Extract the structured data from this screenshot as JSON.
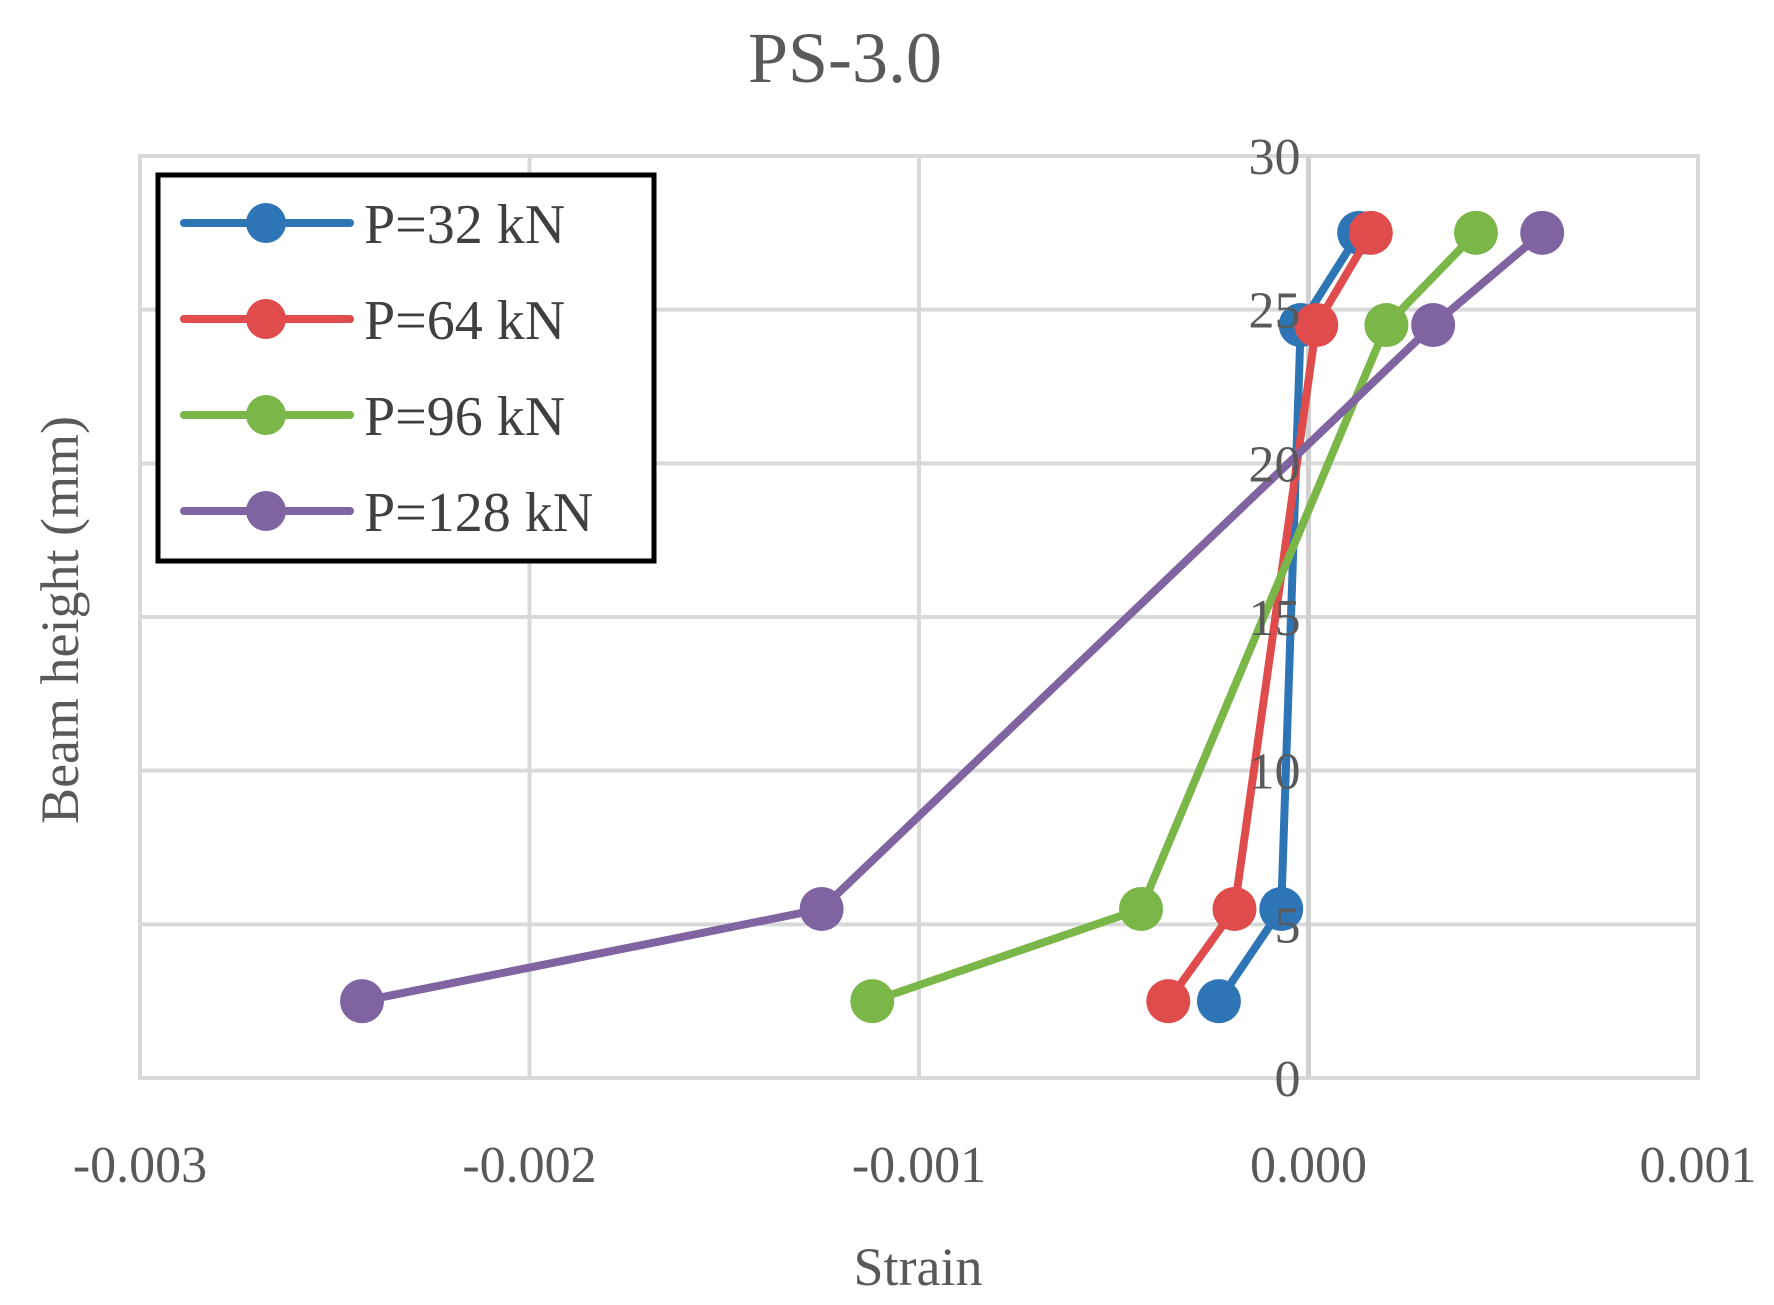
{
  "chart_data": {
    "type": "line",
    "title": "PS-3.0",
    "xlabel": "Strain",
    "ylabel": "Beam height (mm)",
    "xlim": [
      -0.003,
      0.001
    ],
    "ylim": [
      0,
      30
    ],
    "xticks": [
      -0.003,
      -0.002,
      -0.001,
      0.0,
      0.001
    ],
    "xtick_labels": [
      "-0.003",
      "-0.002",
      "-0.001",
      "0.000",
      "0.001"
    ],
    "yticks": [
      0,
      5,
      10,
      15,
      20,
      25,
      30
    ],
    "ytick_labels": [
      "0",
      "5",
      "10",
      "15",
      "20",
      "25",
      "30"
    ],
    "grid": true,
    "legend_position": "top-left",
    "series": [
      {
        "name": "P=32 kN",
        "color": "#2e75b6",
        "points": [
          [
            -0.00023,
            2.5
          ],
          [
            -7e-05,
            5.5
          ],
          [
            -2e-05,
            24.5
          ],
          [
            0.00013,
            27.5
          ]
        ]
      },
      {
        "name": "P=64 kN",
        "color": "#e04b4b",
        "points": [
          [
            -0.00036,
            2.5
          ],
          [
            -0.00019,
            5.5
          ],
          [
            2e-05,
            24.5
          ],
          [
            0.00016,
            27.5
          ]
        ]
      },
      {
        "name": "P=96 kN",
        "color": "#7ab648",
        "points": [
          [
            -0.00112,
            2.5
          ],
          [
            -0.00043,
            5.5
          ],
          [
            0.0002,
            24.5
          ],
          [
            0.00043,
            27.5
          ]
        ]
      },
      {
        "name": "P=128 kN",
        "color": "#8064a2",
        "points": [
          [
            -0.00243,
            2.5
          ],
          [
            -0.00125,
            5.5
          ],
          [
            0.00032,
            24.5
          ],
          [
            0.0006,
            27.5
          ]
        ]
      }
    ]
  }
}
